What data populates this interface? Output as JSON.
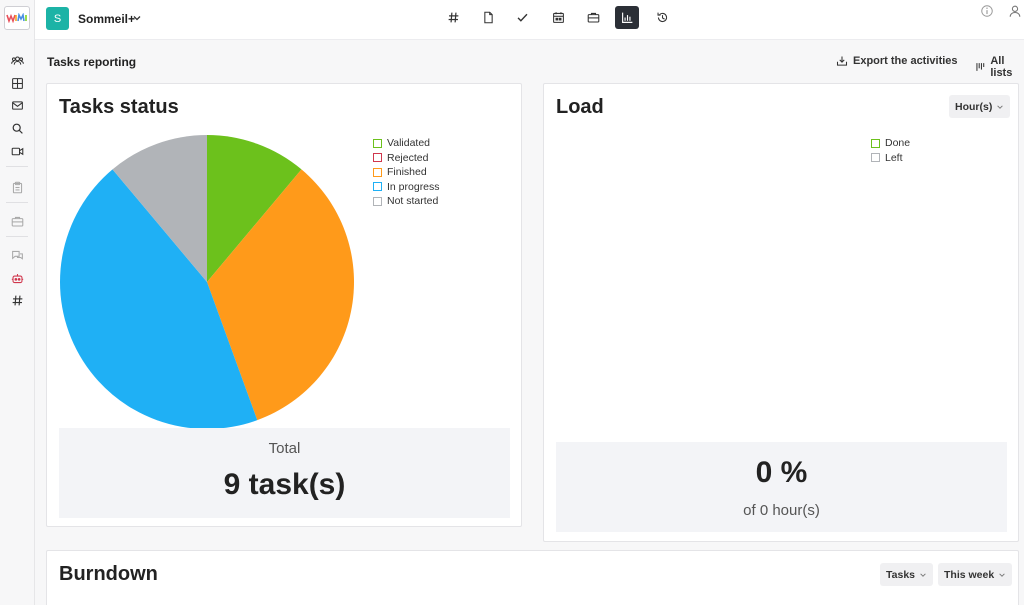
{
  "sidebar": {
    "logo_label": "WIMI",
    "icons": [
      "users-icon",
      "dashboard-icon",
      "mail-icon",
      "search-icon",
      "video-icon",
      "clipboard-icon",
      "briefcase-icon",
      "chat-icon",
      "robot-icon",
      "hash-icon"
    ]
  },
  "topbar": {
    "project_initial": "S",
    "project_name": "Sommeil+",
    "tools": [
      "hash-icon",
      "document-icon",
      "check-icon",
      "calendar-icon",
      "briefcase-icon",
      "chart-icon",
      "history-icon"
    ],
    "active_tool": "chart-icon"
  },
  "reporting": {
    "title": "Tasks reporting",
    "export_label": "Export the activities",
    "all_lists_label": "All lists"
  },
  "tasks_status": {
    "title": "Tasks status",
    "total_label": "Total",
    "total_value": "9 task(s)"
  },
  "chart_data": {
    "type": "pie",
    "categories": [
      "Validated",
      "Rejected",
      "Finished",
      "In progress",
      "Not started"
    ],
    "values": [
      1,
      0,
      3,
      4,
      1
    ],
    "colors": [
      "#6cc11c",
      "#d0374d",
      "#ff9a1a",
      "#1fb0f5",
      "#b1b4b8"
    ],
    "legend_position": "top-right"
  },
  "load": {
    "title": "Load",
    "unit_selector": "Hour(s)",
    "legend": [
      {
        "label": "Done",
        "color": "#6cc11c"
      },
      {
        "label": "Left",
        "color": "#b1b4b8"
      }
    ],
    "percent_value": "0 %",
    "percent_caption": "of 0 hour(s)"
  },
  "burndown": {
    "title": "Burndown",
    "metric_selector": "Tasks",
    "period_selector": "This week"
  }
}
